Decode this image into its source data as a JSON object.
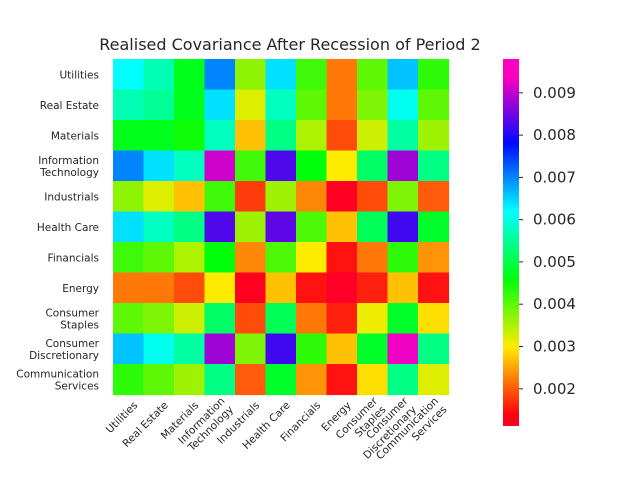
{
  "chart_data": {
    "type": "heatmap",
    "title": "Realised Covariance After Recession of Period 2",
    "xlabel": "",
    "ylabel": "",
    "categories": [
      "Utilities",
      "Real Estate",
      "Materials",
      "Information\nTechnology",
      "Industrials",
      "Health Care",
      "Financials",
      "Energy",
      "Consumer\nStaples",
      "Consumer\nDiscretionary",
      "Communication\nServices"
    ],
    "matrix": [
      [
        0.0062,
        0.0057,
        0.0047,
        0.007,
        0.0037,
        0.0064,
        0.0042,
        0.0022,
        0.004,
        0.0066,
        0.0043
      ],
      [
        0.0057,
        0.0055,
        0.0047,
        0.0064,
        0.0032,
        0.0058,
        0.004,
        0.0022,
        0.0038,
        0.0061,
        0.004
      ],
      [
        0.0047,
        0.0047,
        0.0045,
        0.0058,
        0.0027,
        0.0054,
        0.0035,
        0.0019,
        0.0033,
        0.0056,
        0.0036
      ],
      [
        0.007,
        0.0064,
        0.0058,
        0.0091,
        0.0042,
        0.0083,
        0.0046,
        0.003,
        0.0052,
        0.0088,
        0.0054
      ],
      [
        0.0037,
        0.0032,
        0.0027,
        0.0042,
        0.0018,
        0.0036,
        0.0023,
        0.0012,
        0.0019,
        0.0038,
        0.002
      ],
      [
        0.0064,
        0.0058,
        0.0054,
        0.0083,
        0.0036,
        0.0084,
        0.0041,
        0.0027,
        0.0051,
        0.0082,
        0.0048
      ],
      [
        0.0042,
        0.004,
        0.0035,
        0.0046,
        0.0023,
        0.0041,
        0.003,
        0.0015,
        0.0022,
        0.0043,
        0.0024
      ],
      [
        0.0022,
        0.0022,
        0.0019,
        0.003,
        0.0012,
        0.0027,
        0.0015,
        0.0011,
        0.0016,
        0.0027,
        0.0015
      ],
      [
        0.004,
        0.0038,
        0.0033,
        0.0052,
        0.0019,
        0.0051,
        0.0022,
        0.0016,
        0.0031,
        0.0048,
        0.0029
      ],
      [
        0.0066,
        0.0061,
        0.0056,
        0.0088,
        0.0038,
        0.0082,
        0.0043,
        0.0027,
        0.0048,
        0.0093,
        0.0054
      ],
      [
        0.0043,
        0.004,
        0.0036,
        0.0054,
        0.002,
        0.0048,
        0.0024,
        0.0015,
        0.0029,
        0.0054,
        0.0032
      ]
    ],
    "colormap": "gist_rainbow",
    "vmin": 0.00112,
    "vmax": 0.0098,
    "colorbar_ticks": [
      0.002,
      0.003,
      0.004,
      0.005,
      0.006,
      0.007,
      0.008,
      0.009
    ],
    "colorbar_tick_labels": [
      "0.002",
      "0.003",
      "0.004",
      "0.005",
      "0.006",
      "0.007",
      "0.008",
      "0.009"
    ],
    "grid": false
  }
}
